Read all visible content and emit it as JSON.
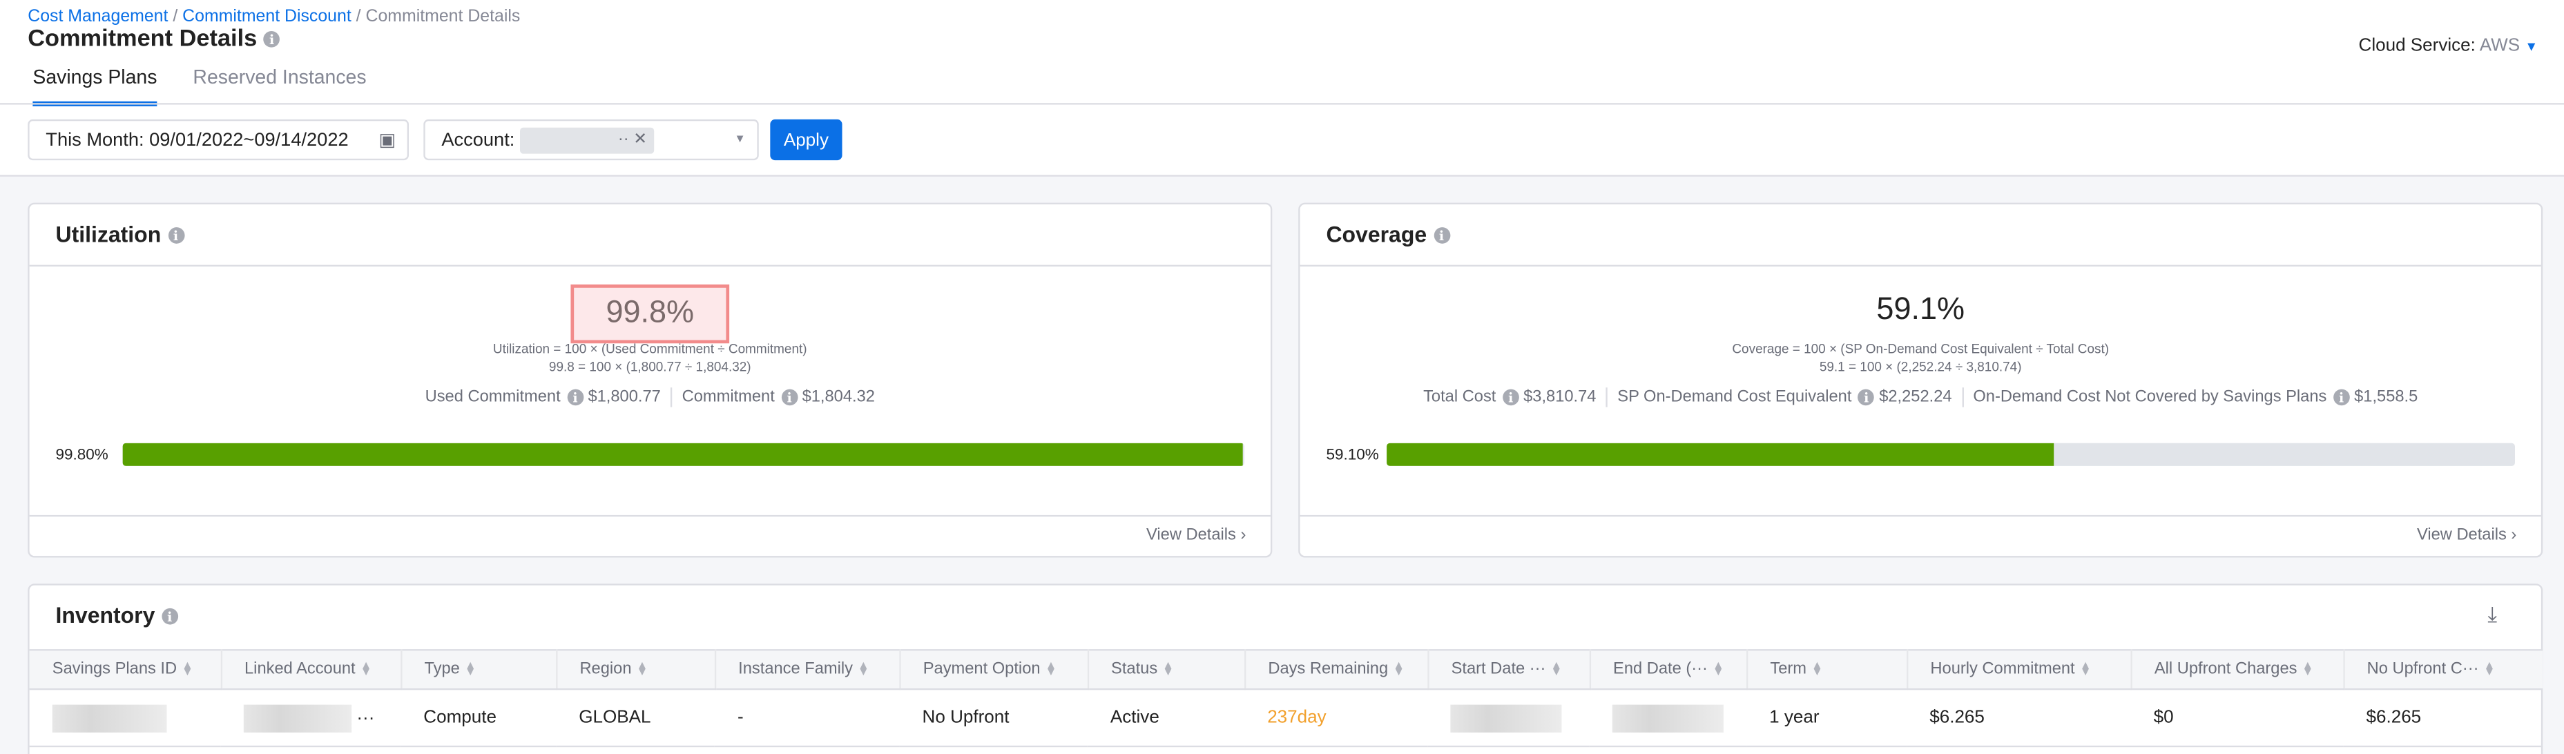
{
  "breadcrumb": [
    "Cost Management",
    "Commitment Discount",
    "Commitment Details"
  ],
  "page_title": "Commitment Details",
  "tabs": [
    {
      "label": "Savings Plans",
      "active": true
    },
    {
      "label": "Reserved Instances",
      "active": false
    }
  ],
  "cloud_service": {
    "label": "Cloud Service:",
    "value": "AWS"
  },
  "filters": {
    "date": "This Month: 09/01/2022~09/14/2022",
    "account_label": "Account:",
    "apply": "Apply"
  },
  "utilization": {
    "title": "Utilization",
    "value": "99.8%",
    "formula": "Utilization = 100 × (Used Commitment ÷ Commitment)",
    "formula_values": "99.8 = 100 × (1,800.77 ÷ 1,804.32)",
    "stats": [
      {
        "label": "Used Commitment",
        "value": "$1,800.77"
      },
      {
        "label": "Commitment",
        "value": "$1,804.32"
      }
    ],
    "bar_label": "99.80%",
    "bar_percent": 99.8,
    "view_details": "View Details"
  },
  "coverage": {
    "title": "Coverage",
    "value": "59.1%",
    "formula": "Coverage = 100 × (SP On-Demand Cost Equivalent ÷ Total Cost)",
    "formula_values": "59.1 = 100 × (2,252.24 ÷ 3,810.74)",
    "stats": [
      {
        "label": "Total Cost",
        "value": "$3,810.74"
      },
      {
        "label": "SP On-Demand Cost Equivalent",
        "value": "$2,252.24"
      },
      {
        "label": "On-Demand Cost Not Covered by Savings Plans",
        "value": "$1,558.5"
      }
    ],
    "bar_label": "59.10%",
    "bar_percent": 59.1,
    "view_details": "View Details"
  },
  "inventory": {
    "title": "Inventory",
    "columns": [
      "Savings Plans ID",
      "Linked Account",
      "Type",
      "Region",
      "Instance Family",
      "Payment Option",
      "Status",
      "Days Remaining",
      "Start Date ···",
      "End Date (···",
      "Term",
      "Hourly Commitment",
      "All Upfront Charges",
      "No Upfront C···"
    ],
    "rows": [
      {
        "type": "Compute",
        "region": "GLOBAL",
        "instance_family": "-",
        "payment_option": "No Upfront",
        "status": "Active",
        "days_remaining": "237day",
        "term": "1 year",
        "hourly_commitment": "$6.265",
        "all_upfront": "$0",
        "no_upfront": "$6.265"
      }
    ]
  },
  "colors": {
    "accent": "#0b70e6",
    "bar_fill": "#58a000",
    "days_remaining": "#f2a02c",
    "highlight_border": "#f28b8b"
  }
}
